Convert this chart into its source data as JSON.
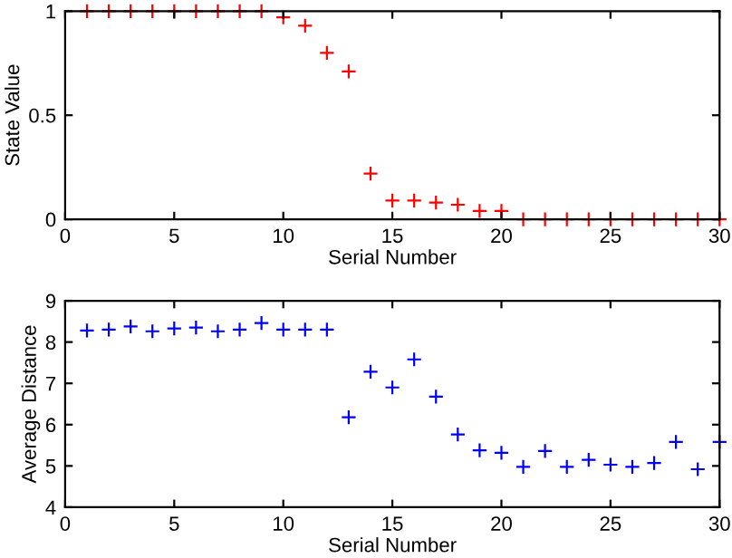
{
  "chart_data": [
    {
      "type": "scatter",
      "xlabel": "Serial Number",
      "ylabel": "State Value",
      "x": [
        1,
        2,
        3,
        4,
        5,
        6,
        7,
        8,
        9,
        10,
        11,
        12,
        13,
        14,
        15,
        16,
        17,
        18,
        19,
        20,
        21,
        22,
        23,
        24,
        25,
        26,
        27,
        28,
        29,
        30
      ],
      "series": [
        {
          "color": "#ff0000",
          "values": [
            1,
            1,
            1,
            1,
            1,
            1,
            1,
            1,
            1,
            0.97,
            0.93,
            0.8,
            0.71,
            0.22,
            0.09,
            0.09,
            0.08,
            0.07,
            0.04,
            0.04,
            0,
            0,
            0,
            0,
            0,
            0,
            0,
            0,
            0,
            0
          ]
        }
      ],
      "xlim": [
        0,
        30
      ],
      "xticks": [
        0,
        5,
        10,
        15,
        20,
        25,
        30
      ],
      "ylim": [
        0,
        1
      ],
      "yticks": [
        0,
        0.5,
        1
      ],
      "marker": "cross",
      "grid": false,
      "legend": false
    },
    {
      "type": "scatter",
      "xlabel": "Serial Number",
      "ylabel": "Average Distance",
      "x": [
        1,
        2,
        3,
        4,
        5,
        6,
        7,
        8,
        9,
        10,
        11,
        12,
        13,
        14,
        15,
        16,
        17,
        18,
        19,
        20,
        21,
        22,
        23,
        24,
        25,
        26,
        27,
        28,
        29,
        30
      ],
      "series": [
        {
          "color": "#0000ff",
          "values": [
            8.28,
            8.3,
            8.38,
            8.26,
            8.33,
            8.35,
            8.26,
            8.3,
            8.46,
            8.3,
            8.3,
            8.3,
            6.18,
            7.28,
            6.9,
            7.58,
            6.68,
            5.76,
            5.38,
            5.32,
            4.98,
            5.36,
            4.98,
            5.15,
            5.03,
            4.98,
            5.07,
            5.58,
            4.92,
            5.58
          ]
        }
      ],
      "xlim": [
        0,
        30
      ],
      "xticks": [
        0,
        5,
        10,
        15,
        20,
        25,
        30
      ],
      "ylim": [
        4,
        9
      ],
      "yticks": [
        4,
        5,
        6,
        7,
        8,
        9
      ],
      "marker": "cross",
      "grid": false,
      "legend": false
    }
  ]
}
